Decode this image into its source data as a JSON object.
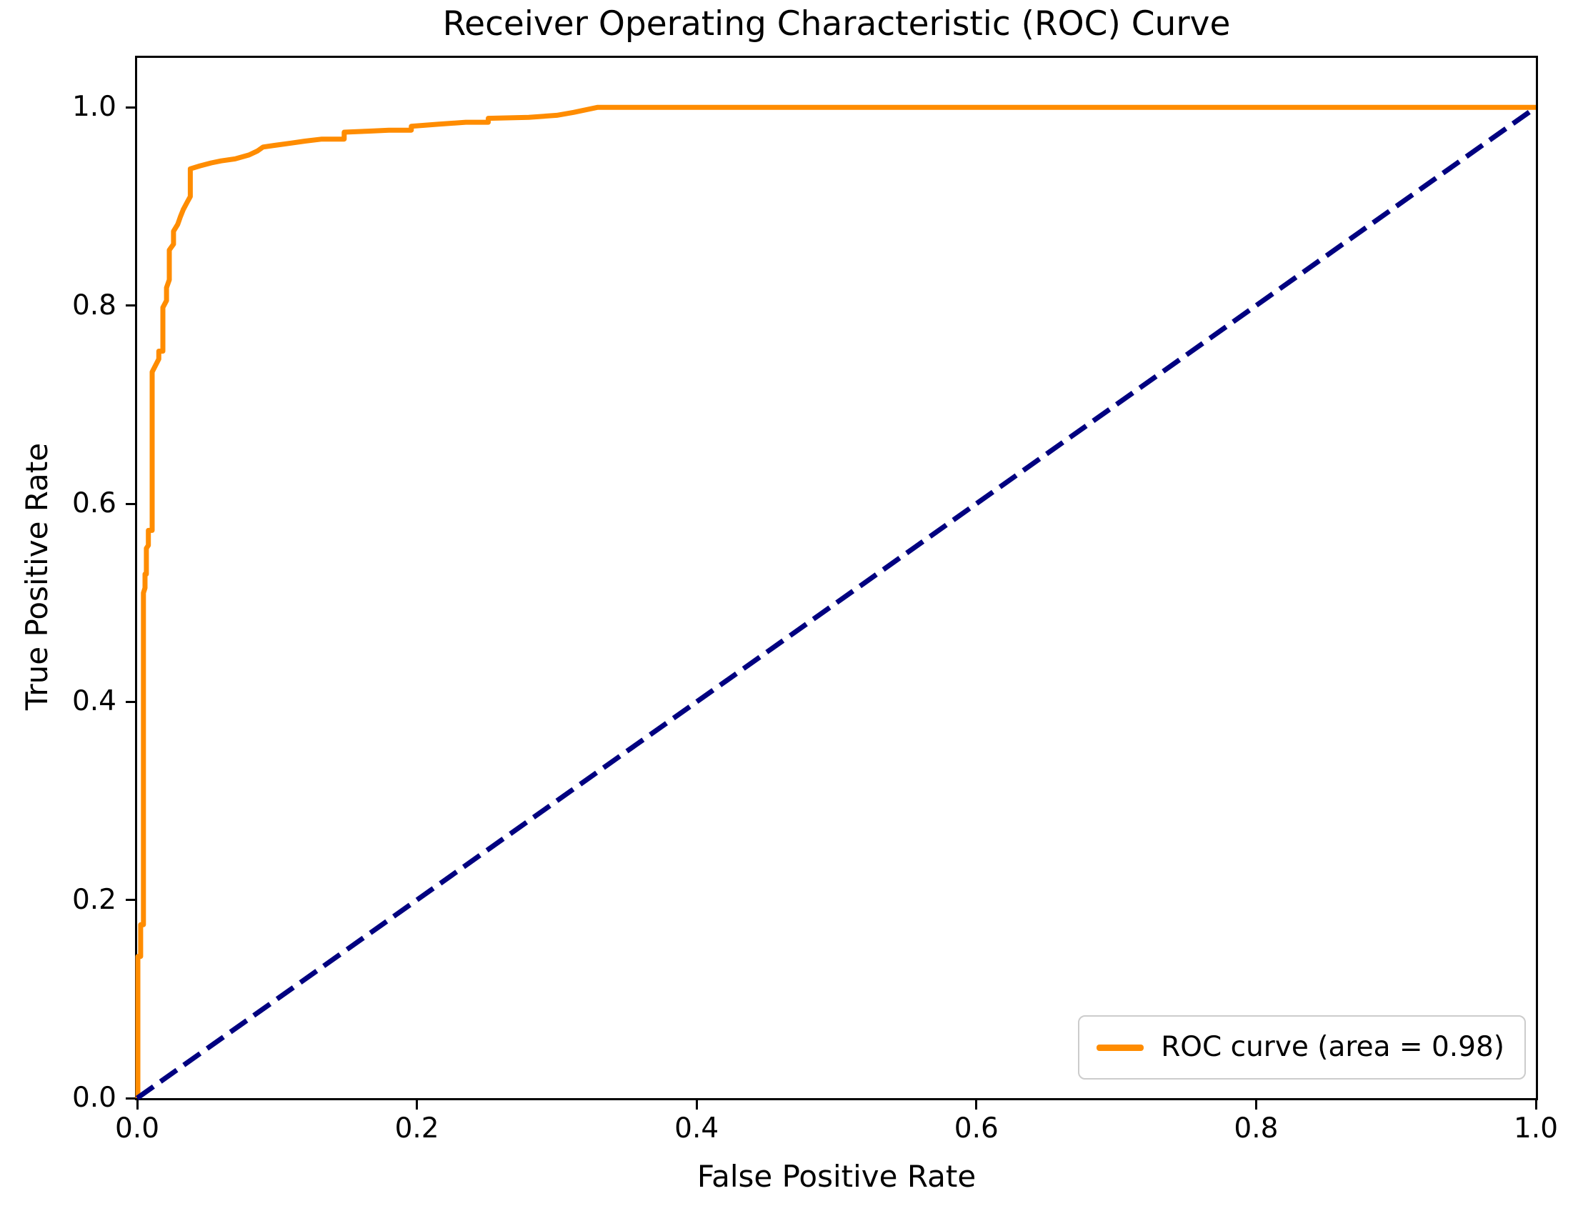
{
  "figure": {
    "title": "Receiver Operating Characteristic (ROC) Curve",
    "background_color": "#ffffff",
    "axis_color": "#000000",
    "legend_border_color": "#cccccc"
  },
  "chart_data": {
    "type": "line",
    "title": "Receiver Operating Characteristic (ROC) Curve",
    "xlabel": "False Positive Rate",
    "ylabel": "True Positive Rate",
    "xlim": [
      0.0,
      1.0
    ],
    "ylim": [
      0.0,
      1.05
    ],
    "x_ticks": [
      0.0,
      0.2,
      0.4,
      0.6,
      0.8,
      1.0
    ],
    "x_tick_labels": [
      "0.0",
      "0.2",
      "0.4",
      "0.6",
      "0.8",
      "1.0"
    ],
    "y_ticks": [
      0.0,
      0.2,
      0.4,
      0.6,
      0.8,
      1.0
    ],
    "y_tick_labels": [
      "0.0",
      "0.2",
      "0.4",
      "0.6",
      "0.8",
      "1.0"
    ],
    "grid": false,
    "legend_position": "lower right",
    "auc": 0.98,
    "series": [
      {
        "name": "ROC curve (area = 0.98)",
        "id": "roc-curve",
        "color": "#ff8c00",
        "style": "solid",
        "line_width": 7,
        "in_legend": true,
        "points": [
          [
            0.0005,
            0.0
          ],
          [
            0.0005,
            0.143
          ],
          [
            0.0025,
            0.143
          ],
          [
            0.0025,
            0.175
          ],
          [
            0.0045,
            0.175
          ],
          [
            0.0045,
            0.51
          ],
          [
            0.0056,
            0.515
          ],
          [
            0.0056,
            0.529
          ],
          [
            0.0066,
            0.529
          ],
          [
            0.0066,
            0.555
          ],
          [
            0.008,
            0.558
          ],
          [
            0.008,
            0.573
          ],
          [
            0.0107,
            0.573
          ],
          [
            0.0107,
            0.733
          ],
          [
            0.0133,
            0.74
          ],
          [
            0.0155,
            0.746
          ],
          [
            0.0155,
            0.754
          ],
          [
            0.0184,
            0.754
          ],
          [
            0.0184,
            0.798
          ],
          [
            0.021,
            0.805
          ],
          [
            0.021,
            0.818
          ],
          [
            0.023,
            0.826
          ],
          [
            0.023,
            0.856
          ],
          [
            0.026,
            0.862
          ],
          [
            0.026,
            0.875
          ],
          [
            0.029,
            0.882
          ],
          [
            0.031,
            0.89
          ],
          [
            0.033,
            0.897
          ],
          [
            0.036,
            0.905
          ],
          [
            0.038,
            0.91
          ],
          [
            0.038,
            0.938
          ],
          [
            0.045,
            0.941
          ],
          [
            0.053,
            0.944
          ],
          [
            0.06,
            0.946
          ],
          [
            0.07,
            0.948
          ],
          [
            0.08,
            0.952
          ],
          [
            0.086,
            0.956
          ],
          [
            0.09,
            0.96
          ],
          [
            0.1,
            0.962
          ],
          [
            0.11,
            0.964
          ],
          [
            0.12,
            0.966
          ],
          [
            0.132,
            0.968
          ],
          [
            0.148,
            0.968
          ],
          [
            0.148,
            0.975
          ],
          [
            0.165,
            0.976
          ],
          [
            0.18,
            0.977
          ],
          [
            0.196,
            0.977
          ],
          [
            0.196,
            0.981
          ],
          [
            0.215,
            0.983
          ],
          [
            0.235,
            0.985
          ],
          [
            0.251,
            0.985
          ],
          [
            0.251,
            0.989
          ],
          [
            0.28,
            0.99
          ],
          [
            0.3,
            0.992
          ],
          [
            0.312,
            0.995
          ],
          [
            0.329,
            1.0
          ],
          [
            1.0,
            1.0
          ]
        ]
      },
      {
        "name": "chance-diagonal",
        "id": "chance-diagonal",
        "color": "#000080",
        "style": "dashed",
        "line_width": 7,
        "in_legend": false,
        "points": [
          [
            0.0,
            0.0
          ],
          [
            1.0,
            1.0
          ]
        ]
      }
    ]
  },
  "legend": {
    "label": "ROC curve (area = 0.98)",
    "swatch_color": "#ff8c00"
  }
}
